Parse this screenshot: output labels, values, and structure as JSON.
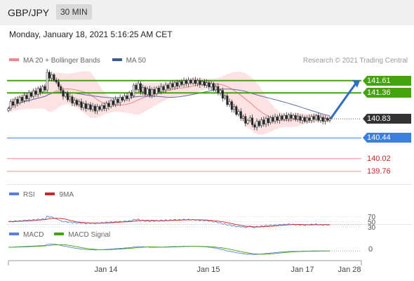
{
  "header": {
    "pair": "GBP/JPY",
    "timeframe": "30 MIN"
  },
  "datetime": "Monday, January 18, 2021 5:16:25 AM CET",
  "legend": {
    "ma20": "MA 20 + Bollinger Bands",
    "ma50": "MA 50",
    "rsi": "RSI",
    "nine_ma": "9MA",
    "macd": "MACD",
    "macd_signal": "MACD Signal"
  },
  "credit": "Research © 2021 Trading Central",
  "colors": {
    "up_candle": "#ffffff",
    "down_candle": "#222222",
    "ma20": "#e8898a",
    "bollinger_fill": "#fbd8d8",
    "ma50": "#5b6fa8",
    "resistance": "#45a30f",
    "pivot": "#3a7fe0",
    "support": "#e89090",
    "current": "#333333",
    "rsi": "#5b7fd8",
    "nine_ma": "#c62828",
    "macd": "#5b7fd8",
    "macd_signal": "#45a30f"
  },
  "chart_data": {
    "type": "candlestick",
    "ylim": [
      139.5,
      141.85
    ],
    "x_ticks": [
      "Jan 14",
      "Jan 15",
      "Jan 17",
      "Jan 28"
    ],
    "price_levels": [
      {
        "value": 141.61,
        "label": "141.61",
        "kind": "resistance"
      },
      {
        "value": 141.36,
        "label": "141.36",
        "kind": "resistance"
      },
      {
        "value": 140.83,
        "label": "140.83",
        "kind": "current"
      },
      {
        "value": 140.44,
        "label": "140.44",
        "kind": "pivot"
      },
      {
        "value": 140.02,
        "label": "140.02",
        "kind": "support"
      },
      {
        "value": 139.76,
        "label": "139.76",
        "kind": "support"
      }
    ],
    "forecast_arrow": {
      "from": 140.83,
      "to": 141.61
    },
    "close": [
      141.04,
      141.18,
      141.11,
      141.23,
      141.15,
      141.27,
      141.2,
      141.31,
      141.24,
      141.36,
      141.29,
      141.4,
      141.33,
      141.45,
      141.38,
      141.49,
      141.42,
      141.78,
      141.66,
      141.73,
      141.62,
      141.58,
      141.49,
      141.41,
      141.29,
      141.35,
      141.22,
      141.28,
      141.15,
      141.21,
      141.12,
      141.18,
      141.06,
      141.14,
      141.04,
      141.12,
      141.02,
      141.09,
      140.99,
      141.08,
      141.02,
      141.1,
      141.04,
      141.15,
      141.08,
      141.2,
      141.12,
      141.23,
      141.16,
      141.27,
      141.21,
      141.3,
      141.24,
      141.36,
      141.3,
      141.52,
      141.43,
      141.55,
      141.38,
      141.47,
      141.33,
      141.44,
      141.31,
      141.43,
      141.34,
      141.46,
      141.38,
      141.49,
      141.42,
      141.52,
      141.45,
      141.55,
      141.48,
      141.57,
      141.5,
      141.59,
      141.53,
      141.61,
      141.55,
      141.62,
      141.56,
      141.62,
      141.55,
      141.61,
      141.53,
      141.59,
      141.51,
      141.57,
      141.48,
      141.55,
      141.42,
      141.49,
      141.36,
      141.41,
      141.25,
      141.3,
      141.12,
      141.18,
      141.02,
      141.08,
      140.92,
      140.98,
      140.84,
      140.88,
      140.74,
      140.8,
      140.85,
      140.71,
      140.66,
      140.78,
      140.69,
      140.81,
      140.72,
      140.84,
      140.75,
      140.86,
      140.78,
      140.87,
      140.8,
      140.89,
      140.82,
      140.9,
      140.83,
      140.91,
      140.84,
      140.9,
      140.82,
      140.88,
      140.8,
      140.86,
      140.78,
      140.85,
      140.8,
      140.88,
      140.82,
      140.9,
      140.8,
      140.86,
      140.78,
      140.84,
      140.8,
      140.83
    ],
    "rsi_levels": [
      "70",
      "50",
      "30"
    ],
    "rsi_ylim": [
      0,
      100
    ],
    "rsi": [
      50,
      52,
      49,
      54,
      51,
      55,
      52,
      57,
      54,
      58,
      55,
      59,
      56,
      61,
      57,
      62,
      58,
      72,
      67,
      69,
      63,
      61,
      57,
      54,
      49,
      52,
      47,
      50,
      45,
      48,
      44,
      47,
      43,
      46,
      42,
      46,
      43,
      46,
      42,
      46,
      44,
      47,
      45,
      49,
      46,
      50,
      47,
      51,
      48,
      52,
      49,
      53,
      50,
      55,
      52,
      60,
      56,
      61,
      53,
      57,
      51,
      55,
      50,
      55,
      51,
      56,
      52,
      57,
      53,
      58,
      54,
      58,
      55,
      59,
      55,
      59,
      56,
      60,
      56,
      60,
      56,
      59,
      55,
      58,
      54,
      57,
      53,
      56,
      51,
      54,
      48,
      51,
      45,
      47,
      40,
      43,
      36,
      39,
      33,
      36,
      30,
      33,
      29,
      31,
      27,
      30,
      34,
      28,
      27,
      33,
      29,
      35,
      31,
      37,
      33,
      38,
      34,
      39,
      35,
      40,
      37,
      41,
      38,
      42,
      38,
      41,
      37,
      40,
      36,
      39,
      35,
      39,
      37,
      41,
      38,
      42,
      37,
      40,
      36,
      39,
      37,
      38
    ],
    "macd_zero_label": "0",
    "macd": [
      0.06,
      0.07,
      0.07,
      0.08,
      0.08,
      0.09,
      0.09,
      0.1,
      0.1,
      0.11,
      0.11,
      0.12,
      0.12,
      0.13,
      0.13,
      0.14,
      0.14,
      0.19,
      0.2,
      0.21,
      0.2,
      0.19,
      0.17,
      0.15,
      0.12,
      0.11,
      0.08,
      0.07,
      0.04,
      0.03,
      0.01,
      0.0,
      -0.02,
      -0.02,
      -0.04,
      -0.04,
      -0.05,
      -0.05,
      -0.06,
      -0.05,
      -0.05,
      -0.04,
      -0.04,
      -0.03,
      -0.03,
      -0.01,
      -0.01,
      0.0,
      0.0,
      0.02,
      0.02,
      0.03,
      0.03,
      0.05,
      0.05,
      0.08,
      0.08,
      0.1,
      0.08,
      0.09,
      0.07,
      0.08,
      0.06,
      0.07,
      0.06,
      0.07,
      0.06,
      0.07,
      0.07,
      0.08,
      0.08,
      0.09,
      0.09,
      0.1,
      0.09,
      0.1,
      0.1,
      0.11,
      0.1,
      0.11,
      0.1,
      0.11,
      0.1,
      0.1,
      0.09,
      0.09,
      0.08,
      0.08,
      0.06,
      0.06,
      0.03,
      0.03,
      0.0,
      -0.01,
      -0.05,
      -0.06,
      -0.1,
      -0.11,
      -0.14,
      -0.15,
      -0.18,
      -0.19,
      -0.21,
      -0.22,
      -0.24,
      -0.25,
      -0.24,
      -0.26,
      -0.26,
      -0.25,
      -0.25,
      -0.23,
      -0.23,
      -0.21,
      -0.21,
      -0.19,
      -0.19,
      -0.17,
      -0.17,
      -0.15,
      -0.15,
      -0.14,
      -0.13,
      -0.12,
      -0.12,
      -0.12,
      -0.12,
      -0.12,
      -0.12,
      -0.11,
      -0.11,
      -0.11,
      -0.11,
      -0.1,
      -0.1,
      -0.1,
      -0.1,
      -0.1,
      -0.1,
      -0.1,
      -0.1,
      -0.1
    ]
  }
}
